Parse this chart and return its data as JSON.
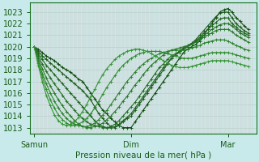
{
  "xlabel": "Pression niveau de la mer( hPa )",
  "bg_color": "#c8eaea",
  "grid_color_h": "#b0d8d0",
  "grid_color_v": "#e8b8b8",
  "line_colors": [
    "#0a4a0a",
    "#1a5a1a",
    "#1e641e",
    "#226e22",
    "#267826",
    "#2a822a",
    "#2e8c2e",
    "#329632"
  ],
  "xtick_labels": [
    "Samun",
    "Dim",
    "Mar"
  ],
  "xtick_positions": [
    0.0,
    48.0,
    96.0
  ],
  "ylim": [
    1012.5,
    1023.8
  ],
  "xlim": [
    -2.0,
    110.0
  ],
  "yticks": [
    1013,
    1014,
    1015,
    1016,
    1017,
    1018,
    1019,
    1020,
    1021,
    1022,
    1023
  ],
  "n_vlines": 110,
  "series": [
    {
      "x": [
        0,
        2,
        4,
        6,
        8,
        10,
        12,
        14,
        16,
        18,
        20,
        22,
        24,
        26,
        28,
        30,
        32,
        34,
        36,
        38,
        40,
        42,
        44,
        46,
        48,
        50,
        52,
        54,
        56,
        58,
        60,
        62,
        64,
        66,
        68,
        70,
        72,
        74,
        76,
        78,
        80,
        82,
        84,
        86,
        88,
        90,
        92,
        94,
        96,
        98,
        100,
        102,
        104,
        106
      ],
      "y": [
        1020,
        1019.8,
        1019.5,
        1019.2,
        1019.0,
        1018.8,
        1018.5,
        1018.2,
        1018.0,
        1017.8,
        1017.5,
        1017.2,
        1017.0,
        1016.5,
        1016.0,
        1015.5,
        1015.0,
        1014.5,
        1014.2,
        1013.8,
        1013.5,
        1013.2,
        1013.0,
        1013.0,
        1013.0,
        1013.5,
        1014.0,
        1014.5,
        1015.0,
        1015.5,
        1016.0,
        1016.5,
        1017.0,
        1017.5,
        1018.0,
        1018.5,
        1019.0,
        1019.5,
        1019.8,
        1020.0,
        1020.2,
        1020.5,
        1021.0,
        1021.5,
        1022.0,
        1022.5,
        1023.0,
        1023.2,
        1023.3,
        1023.0,
        1022.5,
        1022.2,
        1021.8,
        1021.5
      ]
    },
    {
      "x": [
        0,
        2,
        4,
        6,
        8,
        10,
        12,
        14,
        16,
        18,
        20,
        22,
        24,
        26,
        28,
        30,
        32,
        34,
        36,
        38,
        40,
        42,
        44,
        46,
        48,
        50,
        52,
        54,
        56,
        58,
        60,
        62,
        64,
        66,
        68,
        70,
        72,
        74,
        76,
        78,
        80,
        82,
        84,
        86,
        88,
        90,
        92,
        94,
        96,
        98,
        100,
        102,
        104,
        106
      ],
      "y": [
        1020,
        1019.6,
        1019.2,
        1018.9,
        1018.6,
        1018.3,
        1018.0,
        1017.7,
        1017.4,
        1017.1,
        1016.8,
        1016.5,
        1016.2,
        1015.8,
        1015.4,
        1014.8,
        1014.2,
        1013.8,
        1013.4,
        1013.1,
        1013.0,
        1013.2,
        1013.5,
        1013.8,
        1014.0,
        1014.5,
        1015.0,
        1015.5,
        1016.0,
        1016.5,
        1017.0,
        1017.5,
        1018.0,
        1018.5,
        1019.0,
        1019.3,
        1019.6,
        1019.9,
        1020.1,
        1020.3,
        1020.6,
        1021.0,
        1021.4,
        1021.8,
        1022.2,
        1022.6,
        1022.9,
        1023.0,
        1023.0,
        1022.5,
        1022.0,
        1021.7,
        1021.4,
        1021.2
      ]
    },
    {
      "x": [
        0,
        2,
        4,
        6,
        8,
        10,
        12,
        14,
        16,
        18,
        20,
        22,
        24,
        26,
        28,
        30,
        32,
        34,
        36,
        38,
        40,
        42,
        44,
        46,
        48,
        50,
        52,
        54,
        56,
        58,
        60,
        62,
        64,
        66,
        68,
        70,
        72,
        74,
        76,
        78,
        80,
        82,
        84,
        86,
        88,
        90,
        92,
        94,
        96,
        98,
        100,
        102,
        104,
        106
      ],
      "y": [
        1020,
        1019.4,
        1018.9,
        1018.4,
        1018.0,
        1017.6,
        1017.2,
        1016.8,
        1016.4,
        1016.0,
        1015.6,
        1015.2,
        1014.8,
        1014.4,
        1014.0,
        1013.6,
        1013.3,
        1013.1,
        1013.0,
        1013.0,
        1013.1,
        1013.3,
        1013.6,
        1013.9,
        1014.2,
        1014.7,
        1015.2,
        1015.7,
        1016.2,
        1016.7,
        1017.2,
        1017.7,
        1018.2,
        1018.6,
        1019.0,
        1019.3,
        1019.5,
        1019.8,
        1020.0,
        1020.2,
        1020.5,
        1020.8,
        1021.2,
        1021.5,
        1021.8,
        1022.1,
        1022.4,
        1022.5,
        1022.5,
        1022.0,
        1021.7,
        1021.4,
        1021.2,
        1021.0
      ]
    },
    {
      "x": [
        0,
        2,
        4,
        6,
        8,
        10,
        12,
        14,
        16,
        18,
        20,
        22,
        24,
        26,
        28,
        30,
        32,
        34,
        36,
        38,
        40,
        42,
        44,
        46,
        48,
        50,
        52,
        54,
        56,
        58,
        60,
        62,
        64,
        66,
        68,
        70,
        72,
        74,
        76,
        78,
        80,
        82,
        84,
        86,
        88,
        90,
        92,
        94,
        96,
        98,
        100,
        102,
        104,
        106
      ],
      "y": [
        1020,
        1019.2,
        1018.5,
        1017.9,
        1017.3,
        1016.8,
        1016.3,
        1015.8,
        1015.3,
        1014.9,
        1014.5,
        1014.1,
        1013.8,
        1013.5,
        1013.3,
        1013.2,
        1013.1,
        1013.0,
        1013.0,
        1013.1,
        1013.3,
        1013.6,
        1014.0,
        1014.4,
        1014.8,
        1015.2,
        1015.7,
        1016.2,
        1016.7,
        1017.2,
        1017.7,
        1018.2,
        1018.5,
        1018.9,
        1019.2,
        1019.4,
        1019.6,
        1019.8,
        1020.0,
        1020.2,
        1020.4,
        1020.7,
        1021.0,
        1021.2,
        1021.5,
        1021.7,
        1021.9,
        1022.0,
        1022.0,
        1021.8,
        1021.5,
        1021.2,
        1021.0,
        1020.8
      ]
    },
    {
      "x": [
        0,
        2,
        4,
        6,
        8,
        10,
        12,
        14,
        16,
        18,
        20,
        22,
        24,
        26,
        28,
        30,
        32,
        34,
        36,
        38,
        40,
        42,
        44,
        46,
        48,
        50,
        52,
        54,
        56,
        58,
        60,
        62,
        64,
        66,
        68,
        70,
        72,
        74,
        76,
        78,
        80,
        82,
        84,
        86,
        88,
        90,
        92,
        94,
        96,
        98,
        100,
        102,
        104,
        106
      ],
      "y": [
        1020,
        1019.0,
        1018.1,
        1017.3,
        1016.6,
        1016.0,
        1015.4,
        1014.9,
        1014.4,
        1014.0,
        1013.6,
        1013.3,
        1013.1,
        1013.0,
        1013.0,
        1013.1,
        1013.2,
        1013.4,
        1013.7,
        1014.0,
        1014.4,
        1014.8,
        1015.3,
        1015.7,
        1016.2,
        1016.7,
        1017.1,
        1017.6,
        1018.0,
        1018.4,
        1018.7,
        1019.0,
        1019.3,
        1019.5,
        1019.7,
        1019.8,
        1019.9,
        1020.0,
        1020.1,
        1020.2,
        1020.4,
        1020.6,
        1020.8,
        1021.0,
        1021.2,
        1021.4,
        1021.5,
        1021.5,
        1021.5,
        1021.3,
        1021.0,
        1020.8,
        1020.6,
        1020.4
      ]
    },
    {
      "x": [
        0,
        2,
        4,
        6,
        8,
        10,
        12,
        14,
        16,
        18,
        20,
        22,
        24,
        26,
        28,
        30,
        32,
        34,
        36,
        38,
        40,
        42,
        44,
        46,
        48,
        50,
        52,
        54,
        56,
        58,
        60,
        62,
        64,
        66,
        68,
        70,
        72,
        74,
        76,
        78,
        80,
        82,
        84,
        86,
        88,
        90,
        92,
        94,
        96,
        98,
        100,
        102,
        104,
        106
      ],
      "y": [
        1020,
        1018.8,
        1017.7,
        1016.8,
        1016.0,
        1015.3,
        1014.7,
        1014.2,
        1013.8,
        1013.5,
        1013.3,
        1013.2,
        1013.1,
        1013.1,
        1013.2,
        1013.4,
        1013.7,
        1014.1,
        1014.5,
        1015.0,
        1015.5,
        1016.0,
        1016.5,
        1017.0,
        1017.4,
        1017.8,
        1018.2,
        1018.5,
        1018.8,
        1019.0,
        1019.2,
        1019.4,
        1019.5,
        1019.6,
        1019.7,
        1019.7,
        1019.7,
        1019.7,
        1019.8,
        1019.9,
        1020.0,
        1020.1,
        1020.3,
        1020.4,
        1020.5,
        1020.6,
        1020.6,
        1020.6,
        1020.5,
        1020.3,
        1020.1,
        1020.0,
        1019.8,
        1019.7
      ]
    },
    {
      "x": [
        0,
        2,
        4,
        6,
        8,
        10,
        12,
        14,
        16,
        18,
        20,
        22,
        24,
        26,
        28,
        30,
        32,
        34,
        36,
        38,
        40,
        42,
        44,
        46,
        48,
        50,
        52,
        54,
        56,
        58,
        60,
        62,
        64,
        66,
        68,
        70,
        72,
        74,
        76,
        78,
        80,
        82,
        84,
        86,
        88,
        90,
        92,
        94,
        96,
        98,
        100,
        102,
        104,
        106
      ],
      "y": [
        1020,
        1018.6,
        1017.4,
        1016.3,
        1015.4,
        1014.7,
        1014.1,
        1013.7,
        1013.4,
        1013.2,
        1013.2,
        1013.3,
        1013.5,
        1013.8,
        1014.2,
        1014.7,
        1015.3,
        1015.9,
        1016.5,
        1017.0,
        1017.5,
        1018.0,
        1018.4,
        1018.7,
        1019.0,
        1019.2,
        1019.4,
        1019.5,
        1019.6,
        1019.6,
        1019.6,
        1019.6,
        1019.5,
        1019.4,
        1019.3,
        1019.2,
        1019.1,
        1019.0,
        1019.0,
        1019.0,
        1019.1,
        1019.2,
        1019.3,
        1019.4,
        1019.5,
        1019.5,
        1019.5,
        1019.5,
        1019.5,
        1019.4,
        1019.3,
        1019.2,
        1019.1,
        1019.0
      ]
    },
    {
      "x": [
        0,
        2,
        4,
        6,
        8,
        10,
        12,
        14,
        16,
        18,
        20,
        22,
        24,
        26,
        28,
        30,
        32,
        34,
        36,
        38,
        40,
        42,
        44,
        46,
        48,
        50,
        52,
        54,
        56,
        58,
        60,
        62,
        64,
        66,
        68,
        70,
        72,
        74,
        76,
        78,
        80,
        82,
        84,
        86,
        88,
        90,
        92,
        94,
        96,
        98,
        100,
        102,
        104,
        106
      ],
      "y": [
        1020,
        1018.4,
        1017.0,
        1015.8,
        1014.9,
        1014.1,
        1013.6,
        1013.3,
        1013.2,
        1013.3,
        1013.5,
        1013.9,
        1014.4,
        1015.0,
        1015.7,
        1016.3,
        1017.0,
        1017.6,
        1018.1,
        1018.5,
        1018.9,
        1019.2,
        1019.4,
        1019.6,
        1019.7,
        1019.8,
        1019.8,
        1019.7,
        1019.6,
        1019.4,
        1019.2,
        1019.0,
        1018.8,
        1018.6,
        1018.4,
        1018.3,
        1018.2,
        1018.2,
        1018.2,
        1018.3,
        1018.4,
        1018.5,
        1018.6,
        1018.7,
        1018.8,
        1018.8,
        1018.8,
        1018.8,
        1018.8,
        1018.7,
        1018.6,
        1018.5,
        1018.4,
        1018.3
      ]
    }
  ]
}
